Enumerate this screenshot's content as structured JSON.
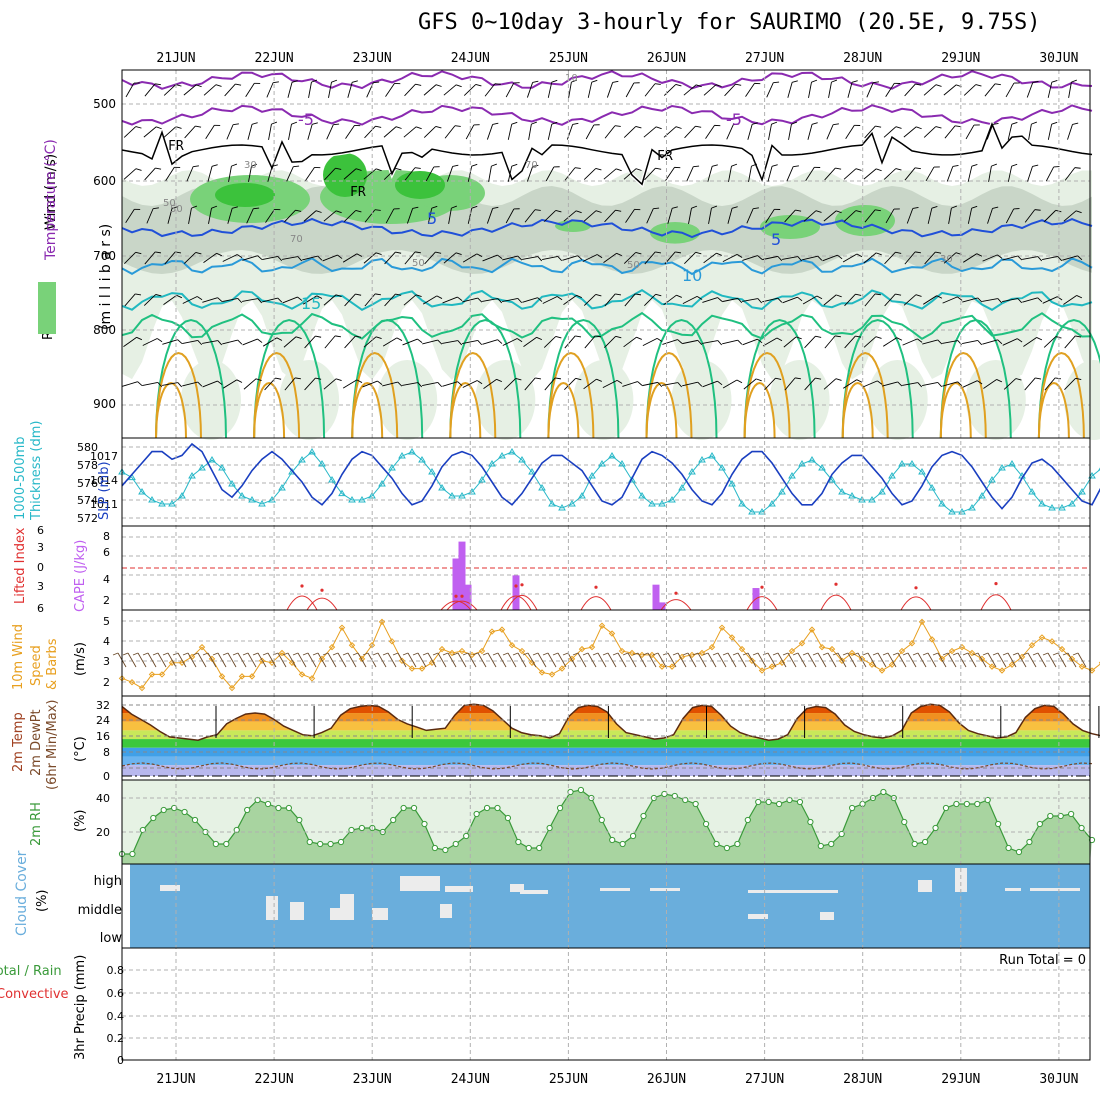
{
  "title": "GFS 0~10day 3-hourly for SAURIMO (20.5E, 9.75S)",
  "dates": [
    "21JUN",
    "22JUN",
    "23JUN",
    "24JUN",
    "25JUN",
    "26JUN",
    "27JUN",
    "28JUN",
    "29JUN",
    "30JUN"
  ],
  "colors": {
    "rh_light": "#e6f0e4",
    "rh_mid": "#c9d6c8",
    "rh_green": "#79d279",
    "rh_bright": "#3cc23c",
    "temp_purple": "#8a2ab0",
    "temp_blue": "#2050d8",
    "temp_sky": "#2a9ad8",
    "temp_cyan": "#20b8c0",
    "temp_teal": "#20c080",
    "temp_orange": "#e0a020",
    "freezing": "#000000",
    "thickness": "#28b8c8",
    "slp": "#1a3fc0",
    "li": "#e03030",
    "cape": "#c060f0",
    "wind10m": "#e8a020",
    "barb": "#6a4a2a",
    "cloud_bg": "#6aaedc",
    "cloud_fill": "#ececec",
    "grid": "#b0b0b0"
  },
  "panels": {
    "upper": {
      "label_wind": "Wind (m/s)",
      "label_temp": "Temperature (°C)",
      "label_rh": "RH (%)",
      "ylabel": "(m i l l i b a r s)",
      "yticks": [
        500,
        600,
        700,
        800,
        900
      ],
      "temp_labels": [
        "-5",
        "-5",
        "5",
        "5",
        "10",
        "15"
      ],
      "fr_label": "FR",
      "rh_labels": [
        "30",
        "50",
        "70",
        "50",
        "70",
        "50",
        "30",
        "10",
        "50"
      ]
    },
    "pressure": {
      "label1": "1000-500mb",
      "label2": "Thickness (dm)",
      "label3": "SLP (mb)",
      "left_ticks": [
        "580",
        "578",
        "576",
        "574",
        "572"
      ],
      "right_ticks": [
        "1017",
        "1014",
        "1011"
      ]
    },
    "stability": {
      "label1": "Lifted Index",
      "label2": "CAPE (J/kg)",
      "left_ticks": [
        "6",
        "3",
        "0",
        "3",
        "6"
      ],
      "right_ticks": [
        "8",
        "6",
        "4",
        "2"
      ]
    },
    "wind10": {
      "label1": "10m Wind",
      "label2": "Speed",
      "label3": "& Barbs",
      "unit": "(m/s)",
      "ticks": [
        "5",
        "4",
        "3",
        "2"
      ]
    },
    "temp2m": {
      "label1": "2m Temp",
      "label2": "2m DewPt",
      "label3": "(6hr Min/Max)",
      "unit": "(°C)",
      "ticks": [
        "32",
        "24",
        "16",
        "8",
        "0"
      ]
    },
    "rh2m": {
      "label": "2m RH",
      "unit": "(%)",
      "ticks": [
        "40",
        "20"
      ]
    },
    "cloud": {
      "label": "Cloud Cover",
      "unit": "(%)",
      "levels": [
        "high",
        "middle",
        "low"
      ]
    },
    "precip": {
      "label1": "3hr Precip (mm)",
      "label2": "Total / Rain",
      "label3": "Convective",
      "ticks": [
        "0.8",
        "0.6",
        "0.4",
        "0.2",
        "0"
      ],
      "run_total": "Run Total = 0"
    }
  },
  "chart_data": [
    {
      "type": "line",
      "title": "1000-500mb Thickness (dm) / SLP (mb)",
      "series": [
        {
          "name": "Thickness (dm)",
          "values": [
            577.5,
            576.8,
            575,
            574,
            573.5,
            573.5,
            574.5,
            577,
            578,
            579,
            578,
            576,
            574.5,
            574,
            573.5,
            574,
            575.5,
            577.5,
            579,
            580,
            578.5,
            576.5,
            574.8,
            574,
            574,
            574.5,
            576,
            578,
            579.5,
            580,
            579,
            577.5,
            575.5,
            574.5,
            574.5,
            575,
            576.5,
            578.5,
            579.5,
            580,
            579,
            577.5,
            575.5,
            573.5,
            573,
            573.5,
            574.5,
            577,
            578.5,
            579.5,
            578.5,
            576.5,
            574.5,
            573.5,
            573.5,
            574,
            575.5,
            577.5,
            579,
            579.5,
            578,
            576,
            573.5,
            572.5,
            572.5,
            573.5,
            575,
            577,
            578.5,
            579,
            578,
            576.5,
            575,
            574.5,
            574,
            574,
            575,
            577,
            578.5,
            578.5,
            577.5,
            575.5,
            573.5,
            572.5,
            572.5,
            573,
            574.5,
            576.5,
            578,
            578.5,
            577,
            575,
            573.5,
            573,
            573,
            573.5,
            575,
            577,
            578,
            578
          ]
        },
        {
          "name": "SLP (mb)",
          "values": [
            1013,
            1014.5,
            1016,
            1017.5,
            1017.5,
            1016.5,
            1017,
            1018.5,
            1017.5,
            1015,
            1012.5,
            1011.5,
            1013,
            1015,
            1016.5,
            1017.5,
            1016.5,
            1015,
            1013.5,
            1011.5,
            1010.5,
            1012,
            1014.5,
            1016.5,
            1017.5,
            1017,
            1015.5,
            1014,
            1012,
            1010.5,
            1011,
            1013,
            1015.5,
            1017,
            1017.5,
            1017,
            1015.5,
            1013.5,
            1011.5,
            1010.5,
            1012,
            1014,
            1016,
            1017,
            1017,
            1016,
            1015,
            1013,
            1011,
            1010.5,
            1011.5,
            1014,
            1016.5,
            1017.5,
            1017,
            1016,
            1014.5,
            1012.5,
            1011,
            1010.5,
            1012,
            1014.5,
            1016.5,
            1017.5,
            1017.5,
            1016,
            1014,
            1012,
            1010.5,
            1010.5,
            1012,
            1014.5,
            1016,
            1017,
            1017,
            1015.5,
            1014,
            1012,
            1010.5,
            1011,
            1013,
            1015.5,
            1017,
            1017.5,
            1017,
            1015.5,
            1013.5,
            1011.5,
            1010,
            1011.5,
            1014,
            1016,
            1016.5,
            1015.5,
            1014,
            1012.5,
            1011,
            1010.5,
            1013,
            1016.5
          ]
        }
      ],
      "ylim_thickness": [
        571.5,
        581
      ],
      "ylim_slp": [
        1008.5,
        1018.5
      ]
    },
    {
      "type": "bar",
      "title": "Lifted Index / CAPE (J/kg)",
      "cape_bars": [
        {
          "x": 16.7,
          "value": 6.1
        },
        {
          "x": 17.0,
          "value": 8.1
        },
        {
          "x": 17.3,
          "value": 3.0
        },
        {
          "x": 19.7,
          "value": 4.1
        },
        {
          "x": 26.7,
          "value": 3.0
        },
        {
          "x": 27.0,
          "value": 0.9
        },
        {
          "x": 31.7,
          "value": 2.6
        }
      ],
      "li_peaks": [
        {
          "x": 9.0,
          "value": 4.0
        },
        {
          "x": 10.0,
          "value": 3.3
        },
        {
          "x": 16.7,
          "value": 2.3
        },
        {
          "x": 17.0,
          "value": 2.3
        },
        {
          "x": 19.7,
          "value": 4.0
        },
        {
          "x": 20.0,
          "value": 4.2
        },
        {
          "x": 23.7,
          "value": 3.8
        },
        {
          "x": 27.7,
          "value": 2.8
        },
        {
          "x": 32.0,
          "value": 3.8
        },
        {
          "x": 35.7,
          "value": 4.3
        },
        {
          "x": 39.7,
          "value": 3.7
        },
        {
          "x": 43.7,
          "value": 4.4
        }
      ],
      "li_zero": 0,
      "ylim_cape": [
        0,
        9
      ]
    },
    {
      "type": "line",
      "title": "10m Wind Speed (m/s)",
      "series": [
        {
          "name": "10m Wind Speed (m/s)",
          "values": [
            2.2,
            2.0,
            1.7,
            2.4,
            2.4,
            3.0,
            3.0,
            3.3,
            3.8,
            3.2,
            2.3,
            1.7,
            2.3,
            2.3,
            3.1,
            3.0,
            3.5,
            3.0,
            2.4,
            2.2,
            3.2,
            3.8,
            4.8,
            3.9,
            3.2,
            3.9,
            5.1,
            4.1,
            3.1,
            2.7,
            2.7,
            3.0,
            3.7,
            3.5,
            3.6,
            3.4,
            3.6,
            4.6,
            4.7,
            3.9,
            3.6,
            3.0,
            2.5,
            2.4,
            2.7,
            3.2,
            3.7,
            3.8,
            4.9,
            4.5,
            3.6,
            3.5,
            3.4,
            3.4,
            2.8,
            2.8,
            3.3,
            3.4,
            3.5,
            3.8,
            4.8,
            4.3,
            3.7,
            3.1,
            2.6,
            2.8,
            3.0,
            3.6,
            4.0,
            4.7,
            3.8,
            3.7,
            3.1,
            3.5,
            3.2,
            2.9,
            2.6,
            2.9,
            3.6,
            4.0,
            5.1,
            4.2,
            3.2,
            3.6,
            3.8,
            3.5,
            3.2,
            2.8,
            2.6,
            2.9,
            3.3,
            3.9,
            4.3,
            4.1,
            3.7,
            3.2,
            2.8,
            2.6,
            3.0,
            3.6,
            4.0,
            4.3
          ]
        }
      ],
      "ylim": [
        1.6,
        5.4
      ]
    },
    {
      "type": "area",
      "title": "2m Temp (°C)",
      "series": [
        {
          "name": "2m Temp (°C)",
          "values": [
            31,
            27.5,
            25,
            22.5,
            19.5,
            17,
            16.5,
            16,
            15.5,
            17,
            18,
            23,
            25.5,
            27.5,
            28,
            27.5,
            25,
            22,
            20,
            18,
            17.5,
            19,
            21,
            27,
            30,
            31,
            31.5,
            31,
            28.5,
            25,
            23,
            21.5,
            20,
            20.5,
            21,
            27,
            31.5,
            32,
            31.5,
            29,
            25,
            21,
            19,
            18,
            17.5,
            16.5,
            18.5,
            26.5,
            30.5,
            31.5,
            31,
            28.5,
            23,
            19,
            18,
            17,
            16,
            16.5,
            18,
            25.5,
            30.5,
            31.5,
            31,
            27,
            22,
            19,
            17.5,
            16.5,
            15.5,
            16,
            18,
            25.5,
            30,
            31,
            30.5,
            27.5,
            22.5,
            19.5,
            18,
            17,
            16.5,
            17.5,
            20,
            28,
            31,
            32,
            31.5,
            28.5,
            23.5,
            20,
            18.5,
            17.5,
            16.5,
            17,
            19,
            26,
            30,
            31.5,
            31,
            27.5,
            23,
            20,
            18.5,
            17.5,
            16.5,
            15.5,
            16
          ]
        }
      ],
      "dewpoint_level": 3.5,
      "ylim": [
        -1,
        34
      ]
    },
    {
      "type": "area",
      "title": "2m RH (%)",
      "series": [
        {
          "name": "2m RH (%)",
          "values": [
            15,
            15,
            27,
            33,
            37,
            38,
            36,
            32,
            26,
            20,
            20,
            27,
            37,
            42,
            40,
            38,
            38,
            32,
            21,
            20,
            20,
            21,
            27,
            28,
            28,
            26,
            32,
            38,
            38,
            30,
            18,
            17,
            20,
            24,
            35,
            38,
            38,
            33,
            21,
            18,
            18,
            28,
            38,
            46,
            47,
            43,
            32,
            22,
            20,
            24,
            34,
            43,
            45,
            44,
            42,
            40,
            30,
            20,
            18,
            20,
            32,
            41,
            41,
            40,
            42,
            41,
            31,
            19,
            20,
            25,
            38,
            40,
            43,
            46,
            43,
            31,
            20,
            21,
            28,
            38,
            40,
            40,
            40,
            42,
            30,
            18,
            16,
            21,
            30,
            34,
            34,
            35,
            28,
            22
          ]
        }
      ],
      "ylim": [
        12,
        50
      ]
    }
  ]
}
